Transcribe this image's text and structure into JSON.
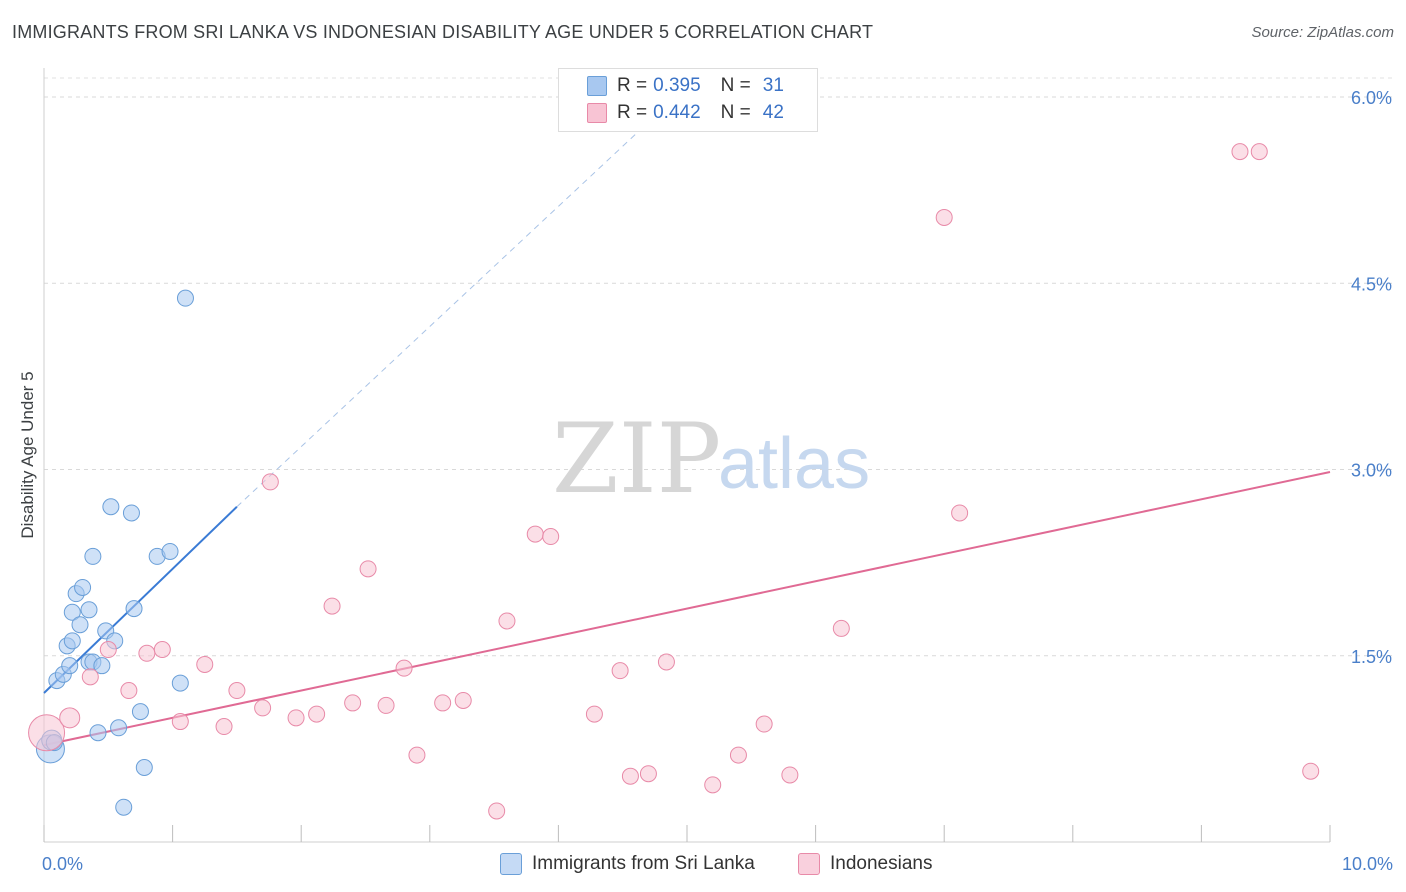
{
  "title": "IMMIGRANTS FROM SRI LANKA VS INDONESIAN DISABILITY AGE UNDER 5 CORRELATION CHART",
  "source": "Source: ZipAtlas.com",
  "watermark": {
    "zip": "ZIP",
    "atlas": "atlas"
  },
  "legend": {
    "rows": [
      {
        "r_label": "R =",
        "r_value": "0.395",
        "n_label": "N =",
        "n_value": "31",
        "color": "#a8c8f0",
        "border": "#6a9fd8"
      },
      {
        "r_label": "R =",
        "r_value": "0.442",
        "n_label": "N =",
        "n_value": "42",
        "color": "#f8c4d4",
        "border": "#e88aa8"
      }
    ]
  },
  "bottom_legend": [
    {
      "label": "Immigrants from Sri Lanka",
      "color": "#c5daf5",
      "border": "#6a9fd8"
    },
    {
      "label": "Indonesians",
      "color": "#f9d0dd",
      "border": "#e88aa8"
    }
  ],
  "chart_data": {
    "type": "scatter",
    "title": "IMMIGRANTS FROM SRI LANKA VS INDONESIAN DISABILITY AGE UNDER 5 CORRELATION CHART",
    "xlabel": "",
    "ylabel": "Disability Age Under 5",
    "xlim": [
      0,
      10
    ],
    "ylim": [
      0,
      6.2
    ],
    "x_tick_labels": [
      {
        "value": 0,
        "label": "0.0%"
      },
      {
        "value": 10,
        "label": "10.0%"
      }
    ],
    "y_tick_labels": [
      {
        "value": 1.5,
        "label": "1.5%"
      },
      {
        "value": 3.0,
        "label": "3.0%"
      },
      {
        "value": 4.5,
        "label": "4.5%"
      },
      {
        "value": 6.0,
        "label": "6.0%"
      }
    ],
    "series": [
      {
        "name": "Immigrants from Sri Lanka",
        "color": "#a8c8f0",
        "stroke": "#6a9fd8",
        "points": [
          [
            0.05,
            0.75,
            14
          ],
          [
            0.06,
            0.82,
            10
          ],
          [
            0.1,
            1.3,
            8
          ],
          [
            0.15,
            1.35,
            8
          ],
          [
            0.18,
            1.58,
            8
          ],
          [
            0.2,
            1.42,
            8
          ],
          [
            0.22,
            1.62,
            8
          ],
          [
            0.22,
            1.85,
            8
          ],
          [
            0.25,
            2.0,
            8
          ],
          [
            0.28,
            1.75,
            8
          ],
          [
            0.3,
            2.05,
            8
          ],
          [
            0.35,
            1.45,
            8
          ],
          [
            0.35,
            1.87,
            8
          ],
          [
            0.38,
            2.3,
            8
          ],
          [
            0.38,
            1.45,
            8
          ],
          [
            0.42,
            0.88,
            8
          ],
          [
            0.45,
            1.42,
            8
          ],
          [
            0.48,
            1.7,
            8
          ],
          [
            0.52,
            2.7,
            8
          ],
          [
            0.55,
            1.62,
            8
          ],
          [
            0.58,
            0.92,
            8
          ],
          [
            0.62,
            0.28,
            8
          ],
          [
            0.68,
            2.65,
            8
          ],
          [
            0.7,
            1.88,
            8
          ],
          [
            0.75,
            1.05,
            8
          ],
          [
            0.78,
            0.6,
            8
          ],
          [
            0.88,
            2.3,
            8
          ],
          [
            0.98,
            2.34,
            8
          ],
          [
            1.06,
            1.28,
            8
          ],
          [
            1.1,
            4.38,
            8
          ],
          [
            0.08,
            0.8,
            8
          ]
        ]
      },
      {
        "name": "Indonesians",
        "color": "#f8c4d4",
        "stroke": "#e88aa8",
        "points": [
          [
            0.02,
            0.88,
            18
          ],
          [
            0.2,
            1.0,
            10
          ],
          [
            0.36,
            1.33,
            8
          ],
          [
            0.5,
            1.55,
            8
          ],
          [
            0.66,
            1.22,
            8
          ],
          [
            0.8,
            1.52,
            8
          ],
          [
            0.92,
            1.55,
            8
          ],
          [
            1.06,
            0.97,
            8
          ],
          [
            1.25,
            1.43,
            8
          ],
          [
            1.4,
            0.93,
            8
          ],
          [
            1.5,
            1.22,
            8
          ],
          [
            1.7,
            1.08,
            8
          ],
          [
            1.76,
            2.9,
            8
          ],
          [
            1.96,
            1.0,
            8
          ],
          [
            2.12,
            1.03,
            8
          ],
          [
            2.24,
            1.9,
            8
          ],
          [
            2.4,
            1.12,
            8
          ],
          [
            2.52,
            2.2,
            8
          ],
          [
            2.66,
            1.1,
            8
          ],
          [
            2.8,
            1.4,
            8
          ],
          [
            2.9,
            0.7,
            8
          ],
          [
            3.1,
            1.12,
            8
          ],
          [
            3.26,
            1.14,
            8
          ],
          [
            3.52,
            0.25,
            8
          ],
          [
            3.6,
            1.78,
            8
          ],
          [
            3.82,
            2.48,
            8
          ],
          [
            3.94,
            2.46,
            8
          ],
          [
            4.28,
            1.03,
            8
          ],
          [
            4.48,
            1.38,
            8
          ],
          [
            4.56,
            0.53,
            8
          ],
          [
            4.7,
            0.55,
            8
          ],
          [
            4.84,
            1.45,
            8
          ],
          [
            5.2,
            0.46,
            8
          ],
          [
            5.4,
            0.7,
            8
          ],
          [
            5.6,
            0.95,
            8
          ],
          [
            5.8,
            0.54,
            8
          ],
          [
            6.2,
            1.72,
            8
          ],
          [
            7.0,
            5.03,
            8
          ],
          [
            7.12,
            2.65,
            8
          ],
          [
            9.3,
            5.56,
            8
          ],
          [
            9.45,
            5.56,
            8
          ],
          [
            9.85,
            0.57,
            8
          ]
        ]
      }
    ],
    "trendlines": [
      {
        "series": "Immigrants from Sri Lanka",
        "x1": 0,
        "y1": 1.2,
        "x2": 1.5,
        "y2": 2.7,
        "color": "#3a7bd5",
        "dashed_extension_to_x": 4.6,
        "dashed_extension_to_y": 5.7
      },
      {
        "series": "Indonesians",
        "x1": 0,
        "y1": 0.78,
        "x2": 10,
        "y2": 2.98,
        "color": "#e06a94"
      }
    ]
  }
}
